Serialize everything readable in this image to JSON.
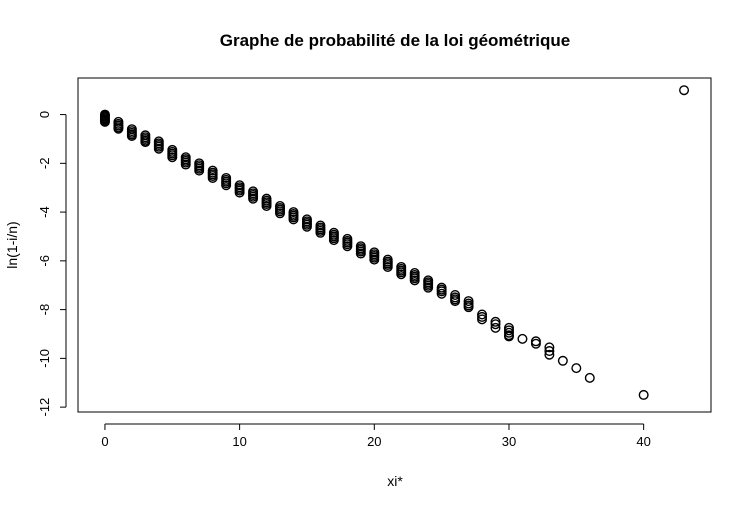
{
  "chart_data": {
    "type": "scatter",
    "title": "Graphe de probabilité de la loi géométrique",
    "xlabel": "xi*",
    "ylabel": "ln(1-i/n)",
    "xlim": [
      -2,
      45
    ],
    "ylim": [
      -12.2,
      1.5
    ],
    "xticks": [
      0,
      10,
      20,
      30,
      40
    ],
    "yticks": [
      0,
      -2,
      -4,
      -6,
      -8,
      -10,
      -12
    ],
    "grid": false,
    "legend": "none",
    "series": [
      {
        "marker": "open-circle",
        "color": "#000000",
        "x": [
          0,
          0,
          0,
          0,
          0,
          0,
          0,
          1,
          1,
          1,
          1,
          1,
          2,
          2,
          2,
          2,
          2,
          3,
          3,
          3,
          3,
          3,
          4,
          4,
          4,
          4,
          4,
          5,
          5,
          5,
          5,
          5,
          6,
          6,
          6,
          6,
          6,
          7,
          7,
          7,
          7,
          7,
          8,
          8,
          8,
          8,
          8,
          9,
          9,
          9,
          9,
          9,
          10,
          10,
          10,
          10,
          10,
          11,
          11,
          11,
          11,
          11,
          12,
          12,
          12,
          12,
          12,
          13,
          13,
          13,
          13,
          13,
          14,
          14,
          14,
          14,
          14,
          15,
          15,
          15,
          15,
          15,
          16,
          16,
          16,
          16,
          16,
          17,
          17,
          17,
          17,
          17,
          18,
          18,
          18,
          18,
          18,
          19,
          19,
          19,
          19,
          19,
          20,
          20,
          20,
          20,
          20,
          21,
          21,
          21,
          21,
          21,
          22,
          22,
          22,
          22,
          22,
          23,
          23,
          23,
          23,
          23,
          24,
          24,
          24,
          24,
          24,
          25,
          25,
          25,
          25,
          26,
          26,
          26,
          26,
          27,
          27,
          27,
          27,
          28,
          28,
          28,
          29,
          29,
          29,
          30,
          30,
          30,
          30,
          30,
          31,
          32,
          32,
          33,
          33,
          33,
          34,
          35,
          36,
          40,
          43
        ],
        "y": [
          0,
          -0.05,
          -0.1,
          -0.15,
          -0.2,
          -0.25,
          -0.3,
          -0.3,
          -0.38,
          -0.45,
          -0.52,
          -0.58,
          -0.6,
          -0.68,
          -0.75,
          -0.82,
          -0.88,
          -0.85,
          -0.93,
          -1.0,
          -1.07,
          -1.13,
          -1.1,
          -1.18,
          -1.25,
          -1.32,
          -1.4,
          -1.45,
          -1.53,
          -1.6,
          -1.67,
          -1.75,
          -1.75,
          -1.83,
          -1.9,
          -1.97,
          -2.05,
          -2.0,
          -2.08,
          -2.15,
          -2.22,
          -2.3,
          -2.3,
          -2.38,
          -2.45,
          -2.52,
          -2.6,
          -2.6,
          -2.68,
          -2.75,
          -2.82,
          -2.9,
          -2.9,
          -2.98,
          -3.05,
          -3.12,
          -3.2,
          -3.15,
          -3.23,
          -3.3,
          -3.37,
          -3.45,
          -3.45,
          -3.53,
          -3.6,
          -3.67,
          -3.75,
          -3.75,
          -3.83,
          -3.9,
          -3.97,
          -4.05,
          -4.0,
          -4.08,
          -4.15,
          -4.22,
          -4.3,
          -4.3,
          -4.38,
          -4.45,
          -4.52,
          -4.6,
          -4.55,
          -4.63,
          -4.7,
          -4.77,
          -4.85,
          -4.85,
          -4.93,
          -5.0,
          -5.07,
          -5.15,
          -5.1,
          -5.18,
          -5.25,
          -5.32,
          -5.4,
          -5.4,
          -5.48,
          -5.55,
          -5.62,
          -5.7,
          -5.65,
          -5.73,
          -5.8,
          -5.87,
          -5.95,
          -5.95,
          -6.03,
          -6.1,
          -6.17,
          -6.25,
          -6.25,
          -6.33,
          -6.4,
          -6.47,
          -6.55,
          -6.5,
          -6.58,
          -6.65,
          -6.72,
          -6.8,
          -6.8,
          -6.88,
          -6.95,
          -7.02,
          -7.1,
          -7.1,
          -7.18,
          -7.25,
          -7.35,
          -7.4,
          -7.5,
          -7.58,
          -7.65,
          -7.65,
          -7.75,
          -7.83,
          -7.9,
          -8.2,
          -8.3,
          -8.4,
          -8.5,
          -8.6,
          -8.75,
          -8.75,
          -8.85,
          -8.95,
          -9.05,
          -9.1,
          -9.2,
          -9.3,
          -9.4,
          -9.55,
          -9.7,
          -9.85,
          -10.1,
          -10.4,
          -10.8,
          -11.5,
          1.0
        ]
      }
    ]
  }
}
